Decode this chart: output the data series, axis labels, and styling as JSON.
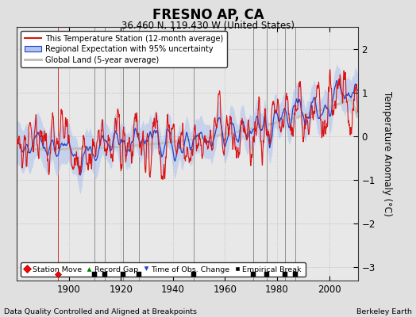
{
  "title": "FRESNO AP, CA",
  "subtitle": "36.460 N, 119.430 W (United States)",
  "ylabel": "Temperature Anomaly (°C)",
  "footer_left": "Data Quality Controlled and Aligned at Breakpoints",
  "footer_right": "Berkeley Earth",
  "xlim": [
    1880,
    2011
  ],
  "ylim": [
    -3.3,
    2.5
  ],
  "yticks": [
    -3,
    -2,
    -1,
    0,
    1,
    2
  ],
  "xticks": [
    1900,
    1920,
    1940,
    1960,
    1980,
    2000
  ],
  "background_color": "#e0e0e0",
  "plot_bg_color": "#e8e8e8",
  "legend_entries": [
    "This Temperature Station (12-month average)",
    "Regional Expectation with 95% uncertainty",
    "Global Land (5-year average)"
  ],
  "station_moves": [
    1896
  ],
  "empirical_breaks": [
    1910,
    1914,
    1921,
    1927,
    1948,
    1971,
    1976,
    1983,
    1987
  ],
  "seed": 17,
  "start_year": 1880,
  "end_year": 2010
}
